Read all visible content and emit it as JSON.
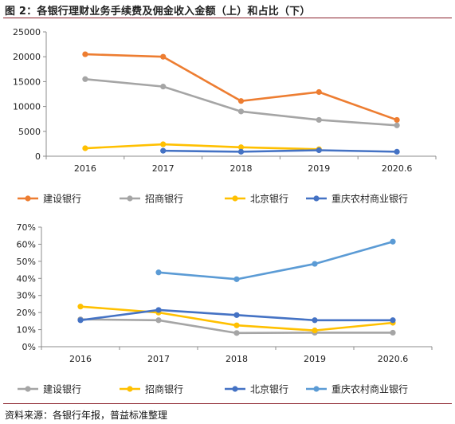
{
  "figure": {
    "title": "图 2：各银行理财业务手续费及佣金收入金额（上）和占比（下）",
    "source": "资料来源：各银行年报，普益标准整理"
  },
  "chart_data": [
    {
      "type": "line",
      "categories": [
        "2016",
        "2017",
        "2018",
        "2019",
        "2020.6"
      ],
      "ylim": [
        0,
        25000
      ],
      "yticks": [
        "0",
        "5000",
        "10000",
        "15000",
        "20000",
        "25000"
      ],
      "grid": false,
      "legend": "bottom",
      "series": [
        {
          "name": "建设银行",
          "color": "#ED7D31",
          "values": [
            20500,
            20000,
            11100,
            12900,
            7300
          ]
        },
        {
          "name": "招商银行",
          "color": "#A5A5A5",
          "values": [
            15500,
            14000,
            9000,
            7300,
            6200
          ]
        },
        {
          "name": "北京银行",
          "color": "#FFC000",
          "values": [
            1600,
            2400,
            1800,
            1400,
            null
          ]
        },
        {
          "name": "重庆农村商业银行",
          "color": "#4472C4",
          "values": [
            null,
            1100,
            900,
            1200,
            900
          ]
        }
      ]
    },
    {
      "type": "line",
      "categories": [
        "2016",
        "2017",
        "2018",
        "2019",
        "2020.6"
      ],
      "ylim": [
        0,
        70
      ],
      "yticks": [
        "0%",
        "10%",
        "20%",
        "30%",
        "40%",
        "50%",
        "60%",
        "70%"
      ],
      "grid": false,
      "legend": "bottom",
      "series": [
        {
          "name": "建设银行",
          "color": "#A5A5A5",
          "values": [
            16,
            15.5,
            8,
            8.2,
            8.2
          ]
        },
        {
          "name": "招商银行",
          "color": "#FFC000",
          "values": [
            23.5,
            20,
            12.5,
            9.5,
            14
          ]
        },
        {
          "name": "北京银行",
          "color": "#4472C4",
          "values": [
            15.5,
            21.5,
            18.5,
            15.5,
            15.5
          ]
        },
        {
          "name": "重庆农村商业银行",
          "color": "#5B9BD5",
          "values": [
            null,
            43.5,
            39.5,
            48.5,
            61.5
          ]
        }
      ]
    }
  ]
}
